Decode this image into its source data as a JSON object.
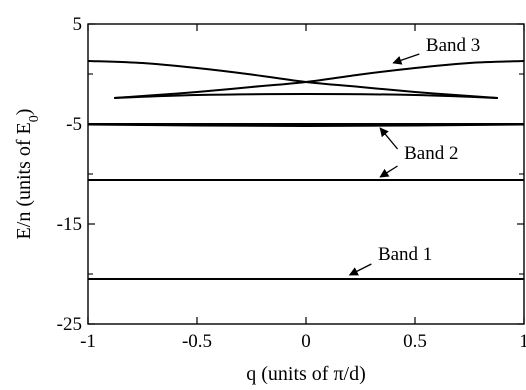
{
  "chart_data": {
    "type": "line",
    "xlabel": "q (units of π/d)",
    "ylabel_main": "E/n (units of E",
    "ylabel_sub": "0",
    "ylabel_close": ")",
    "xlim": [
      -1,
      1
    ],
    "ylim": [
      -25,
      5
    ],
    "x_ticks": [
      -1,
      -0.5,
      0,
      0.5,
      1
    ],
    "x_tick_labels": [
      "-1",
      "-0.5",
      "0",
      "0.5",
      "1"
    ],
    "y_ticks": [
      -25,
      -15,
      -5,
      5
    ],
    "y_tick_labels": [
      "-25",
      "-15",
      "-5",
      "5"
    ],
    "grid": false,
    "series": [
      {
        "x": [
          -1,
          -0.5,
          0,
          0.5,
          1
        ],
        "y": [
          -20.5,
          -20.5,
          -20.5,
          -20.5,
          -20.5
        ]
      },
      {
        "x": [
          -1,
          -0.5,
          0,
          0.5,
          1
        ],
        "y": [
          -10.6,
          -10.6,
          -10.6,
          -10.6,
          -10.6
        ]
      },
      {
        "x": [
          -1,
          -0.5,
          0,
          0.5,
          1
        ],
        "y": [
          -5.0,
          -5.0,
          -5.0,
          -5.0,
          -5.0
        ]
      },
      {
        "x": [
          -1,
          -0.5,
          0,
          0.5,
          1
        ],
        "y": [
          -5.05,
          -5.15,
          -5.2,
          -5.15,
          -5.05
        ]
      },
      {
        "x": [
          -0.88,
          -0.5,
          0,
          0.5,
          0.88
        ],
        "y": [
          -2.4,
          -2.1,
          -2.0,
          -2.1,
          -2.4
        ]
      },
      {
        "x": [
          -1,
          -0.75,
          -0.5,
          -0.25,
          0,
          0.25,
          0.5,
          0.75,
          0.88
        ],
        "y": [
          1.3,
          1.1,
          0.6,
          -0.05,
          -0.8,
          -1.3,
          -1.8,
          -2.2,
          -2.4
        ]
      },
      {
        "x": [
          -0.88,
          -0.75,
          -0.5,
          -0.25,
          0,
          0.25,
          0.5,
          0.75,
          1
        ],
        "y": [
          -2.4,
          -2.2,
          -1.8,
          -1.3,
          -0.8,
          -0.05,
          0.6,
          1.1,
          1.3
        ]
      }
    ],
    "annotations": [
      {
        "text": "Band 3",
        "x": 0.55,
        "y": 2.3,
        "arrows": [
          {
            "from": [
              0.52,
              2.0
            ],
            "to": [
              0.4,
              1.1
            ]
          }
        ]
      },
      {
        "text": "Band 2",
        "x": 0.45,
        "y": -8.5,
        "arrows": [
          {
            "from": [
              0.42,
              -7.5
            ],
            "to": [
              0.34,
              -5.4
            ]
          },
          {
            "from": [
              0.42,
              -9.2
            ],
            "to": [
              0.34,
              -10.3
            ]
          }
        ]
      },
      {
        "text": "Band 1",
        "x": 0.33,
        "y": -18.6,
        "arrows": [
          {
            "from": [
              0.3,
              -19.0
            ],
            "to": [
              0.2,
              -20.1
            ]
          }
        ]
      }
    ]
  }
}
